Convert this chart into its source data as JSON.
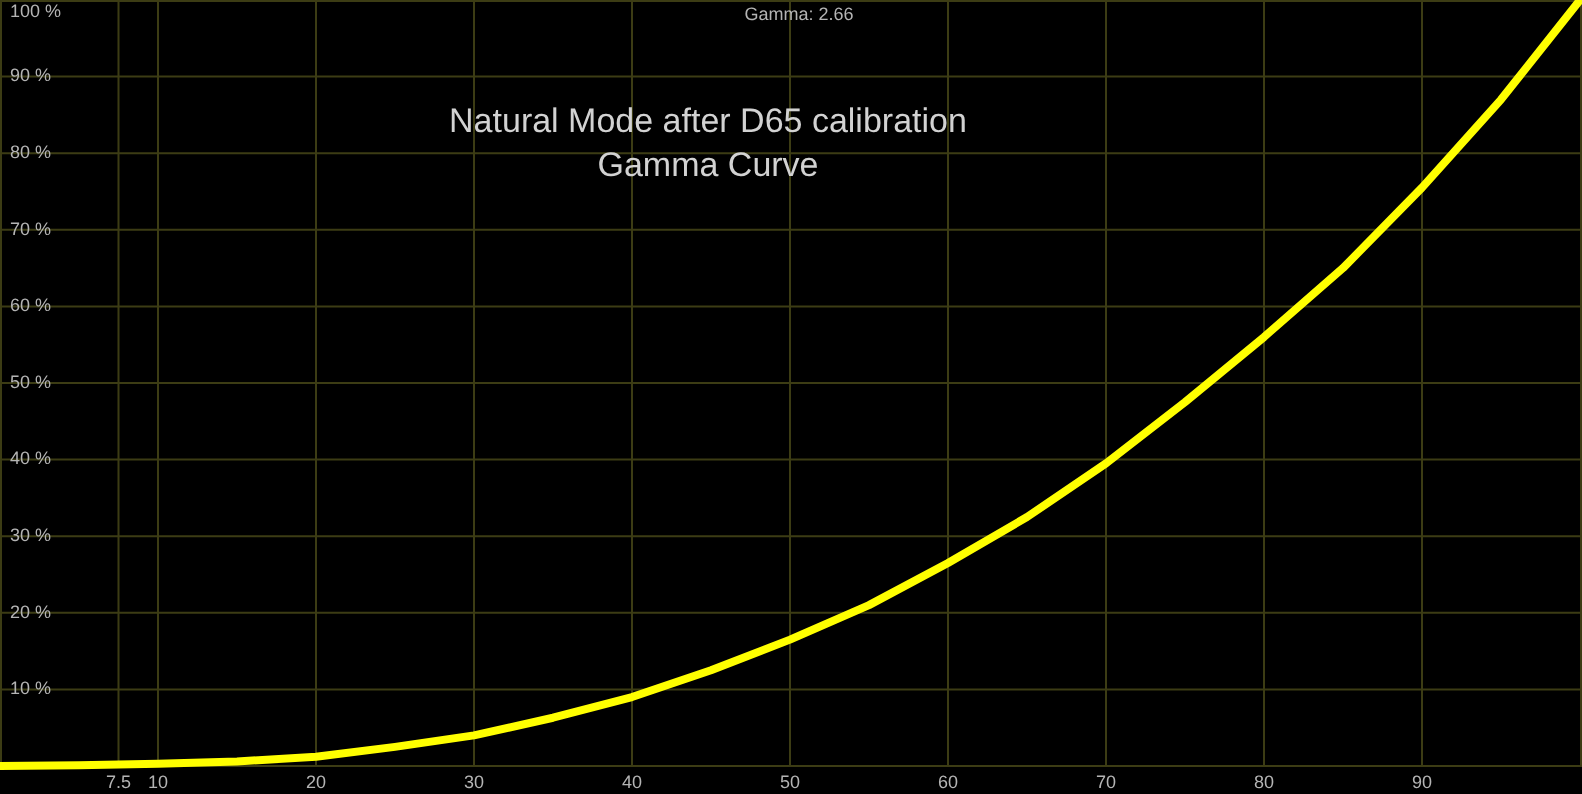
{
  "chart_data": {
    "type": "line",
    "title": "Natural Mode after D65 calibration",
    "subtitle": "Gamma Curve",
    "annotations": [
      "Gamma: 2.66"
    ],
    "series": [
      {
        "color": "#ffff00",
        "x": [
          0,
          5,
          10,
          15,
          20,
          25,
          30,
          35,
          40,
          45,
          50,
          55,
          60,
          65,
          70,
          75,
          80,
          85,
          90,
          95,
          100
        ],
        "values": [
          0,
          0.1,
          0.3,
          0.6,
          1.2,
          2.5,
          4,
          6.3,
          9,
          12.5,
          16.5,
          21,
          26.5,
          32.5,
          39.5,
          47.5,
          56,
          65,
          75.5,
          87,
          100
        ]
      }
    ],
    "xlim": [
      0,
      100
    ],
    "ylim": [
      0,
      100
    ],
    "xticks": [
      {
        "value": 7.5,
        "label": "7.5"
      },
      10,
      20,
      30,
      40,
      50,
      60,
      70,
      80,
      90
    ],
    "yticks": [
      {
        "value": 10,
        "label": "10 %"
      },
      {
        "value": 20,
        "label": "20 %"
      },
      {
        "value": 30,
        "label": "30 %"
      },
      {
        "value": 40,
        "label": "40 %"
      },
      {
        "value": 50,
        "label": "50 %"
      },
      {
        "value": 60,
        "label": "60 %"
      },
      {
        "value": 70,
        "label": "70 %"
      },
      {
        "value": 80,
        "label": "80 %"
      },
      {
        "value": 90,
        "label": "90 %"
      },
      {
        "value": 100,
        "label": "100 %"
      }
    ],
    "grid": true,
    "marker": "none",
    "line_style": "solid"
  }
}
